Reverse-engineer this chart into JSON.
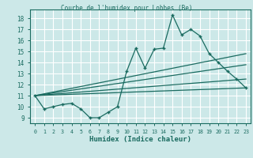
{
  "title": "Courbe de l'humidex pour Lobbes (Be)",
  "xlabel": "Humidex (Indice chaleur)",
  "bg_color": "#cce8e8",
  "grid_color": "#ffffff",
  "line_color": "#1a6b60",
  "xlim": [
    -0.5,
    23.5
  ],
  "ylim": [
    8.5,
    18.8
  ],
  "xticks": [
    0,
    1,
    2,
    3,
    4,
    5,
    6,
    7,
    8,
    9,
    10,
    11,
    12,
    13,
    14,
    15,
    16,
    17,
    18,
    19,
    20,
    21,
    22,
    23
  ],
  "yticks": [
    9,
    10,
    11,
    12,
    13,
    14,
    15,
    16,
    17,
    18
  ],
  "main_x": [
    0,
    1,
    2,
    3,
    4,
    5,
    6,
    7,
    8,
    9,
    10,
    11,
    12,
    13,
    14,
    15,
    16,
    17,
    18,
    19,
    20,
    21,
    22,
    23
  ],
  "main_y": [
    11,
    9.8,
    10,
    10.2,
    10.3,
    9.8,
    9,
    9,
    9.5,
    10,
    13.2,
    15.3,
    13.5,
    15.2,
    15.3,
    18.3,
    16.5,
    17,
    16.4,
    14.8,
    14,
    13.2,
    12.5,
    11.7
  ],
  "trend1_x": [
    0,
    23
  ],
  "trend1_y": [
    11.0,
    11.7
  ],
  "trend2_x": [
    0,
    23
  ],
  "trend2_y": [
    11.0,
    12.5
  ],
  "trend3_x": [
    0,
    23
  ],
  "trend3_y": [
    11.0,
    13.8
  ],
  "trend4_x": [
    0,
    23
  ],
  "trend4_y": [
    11.0,
    14.8
  ]
}
